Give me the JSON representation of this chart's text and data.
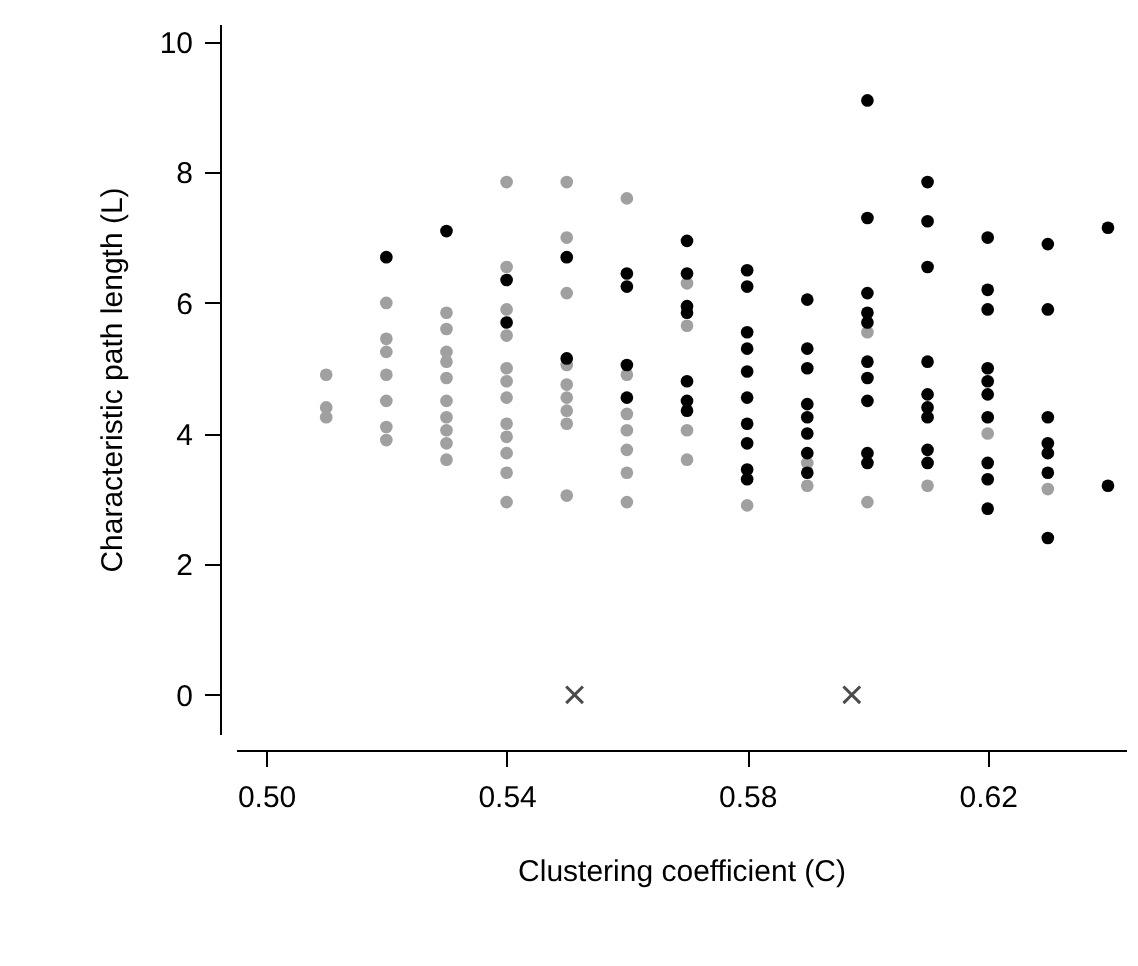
{
  "chart_data": {
    "type": "scatter",
    "xlabel": "Clustering coefficient (C)",
    "ylabel": "Characteristic path length (L)",
    "xlim": [
      0.495,
      0.643
    ],
    "ylim": [
      -0.6,
      10.27
    ],
    "xticks": [
      {
        "value": 0.5,
        "label": "0.50"
      },
      {
        "value": 0.54,
        "label": "0.54"
      },
      {
        "value": 0.58,
        "label": "0.58"
      },
      {
        "value": 0.62,
        "label": "0.62"
      }
    ],
    "yticks": [
      0,
      2,
      4,
      6,
      8,
      10
    ],
    "grid": false,
    "series": [
      {
        "color": "#a0a0a0",
        "marker": "circle",
        "x": [
          0.51,
          0.51,
          0.51,
          0.52,
          0.52,
          0.52,
          0.52,
          0.52,
          0.52,
          0.52,
          0.53,
          0.53,
          0.53,
          0.53,
          0.53,
          0.53,
          0.53,
          0.53,
          0.53,
          0.53,
          0.54,
          0.54,
          0.54,
          0.54,
          0.54,
          0.54,
          0.54,
          0.54,
          0.54,
          0.54,
          0.54,
          0.54,
          0.55,
          0.55,
          0.55,
          0.55,
          0.55,
          0.55,
          0.55,
          0.55,
          0.55,
          0.56,
          0.56,
          0.56,
          0.56,
          0.56,
          0.56,
          0.56,
          0.57,
          0.57,
          0.57,
          0.57,
          0.58,
          0.59,
          0.59,
          0.6,
          0.6,
          0.61,
          0.62,
          0.63
        ],
        "values": [
          4.9,
          4.4,
          4.25,
          6.0,
          5.45,
          5.25,
          4.9,
          4.5,
          4.1,
          3.9,
          5.85,
          5.6,
          5.25,
          5.1,
          4.85,
          4.5,
          4.25,
          4.05,
          3.85,
          3.6,
          7.85,
          6.55,
          5.9,
          5.5,
          5.0,
          4.8,
          4.55,
          4.15,
          3.95,
          3.7,
          3.4,
          2.95,
          7.85,
          7.0,
          6.15,
          5.05,
          4.75,
          4.55,
          4.35,
          4.15,
          3.05,
          7.6,
          4.9,
          4.3,
          4.05,
          3.75,
          3.4,
          2.95,
          6.3,
          5.65,
          4.05,
          3.6,
          2.9,
          3.55,
          3.2,
          5.55,
          2.95,
          3.2,
          4.0,
          3.15
        ]
      },
      {
        "color": "#000000",
        "marker": "circle",
        "x": [
          0.52,
          0.53,
          0.54,
          0.54,
          0.55,
          0.55,
          0.56,
          0.56,
          0.56,
          0.56,
          0.57,
          0.57,
          0.57,
          0.57,
          0.57,
          0.57,
          0.57,
          0.58,
          0.58,
          0.58,
          0.58,
          0.58,
          0.58,
          0.58,
          0.58,
          0.58,
          0.58,
          0.59,
          0.59,
          0.59,
          0.59,
          0.59,
          0.59,
          0.59,
          0.59,
          0.6,
          0.6,
          0.6,
          0.6,
          0.6,
          0.6,
          0.6,
          0.6,
          0.6,
          0.6,
          0.61,
          0.61,
          0.61,
          0.61,
          0.61,
          0.61,
          0.61,
          0.61,
          0.61,
          0.62,
          0.62,
          0.62,
          0.62,
          0.62,
          0.62,
          0.62,
          0.62,
          0.62,
          0.62,
          0.63,
          0.63,
          0.63,
          0.63,
          0.63,
          0.63,
          0.63,
          0.64,
          0.64
        ],
        "values": [
          6.7,
          7.1,
          6.35,
          5.7,
          6.7,
          5.15,
          6.45,
          6.25,
          5.05,
          4.55,
          6.95,
          6.45,
          5.95,
          5.85,
          4.8,
          4.5,
          4.35,
          6.5,
          6.25,
          5.55,
          5.3,
          4.95,
          4.55,
          4.15,
          3.85,
          3.45,
          3.3,
          6.05,
          5.3,
          5.0,
          4.45,
          4.25,
          4.0,
          3.7,
          3.4,
          9.1,
          7.3,
          6.15,
          5.85,
          5.7,
          5.1,
          4.85,
          4.5,
          3.7,
          3.55,
          7.85,
          7.25,
          6.55,
          5.1,
          4.6,
          4.4,
          4.25,
          3.75,
          3.55,
          7.0,
          6.2,
          5.9,
          5.0,
          4.8,
          4.6,
          4.25,
          3.55,
          3.3,
          2.85,
          6.9,
          5.9,
          4.25,
          3.85,
          3.7,
          3.4,
          2.4,
          7.15,
          3.2
        ]
      },
      {
        "color": "#000000",
        "marker": "cross",
        "x": [
          0.5513,
          0.5974
        ],
        "values": [
          0,
          0
        ]
      }
    ]
  }
}
